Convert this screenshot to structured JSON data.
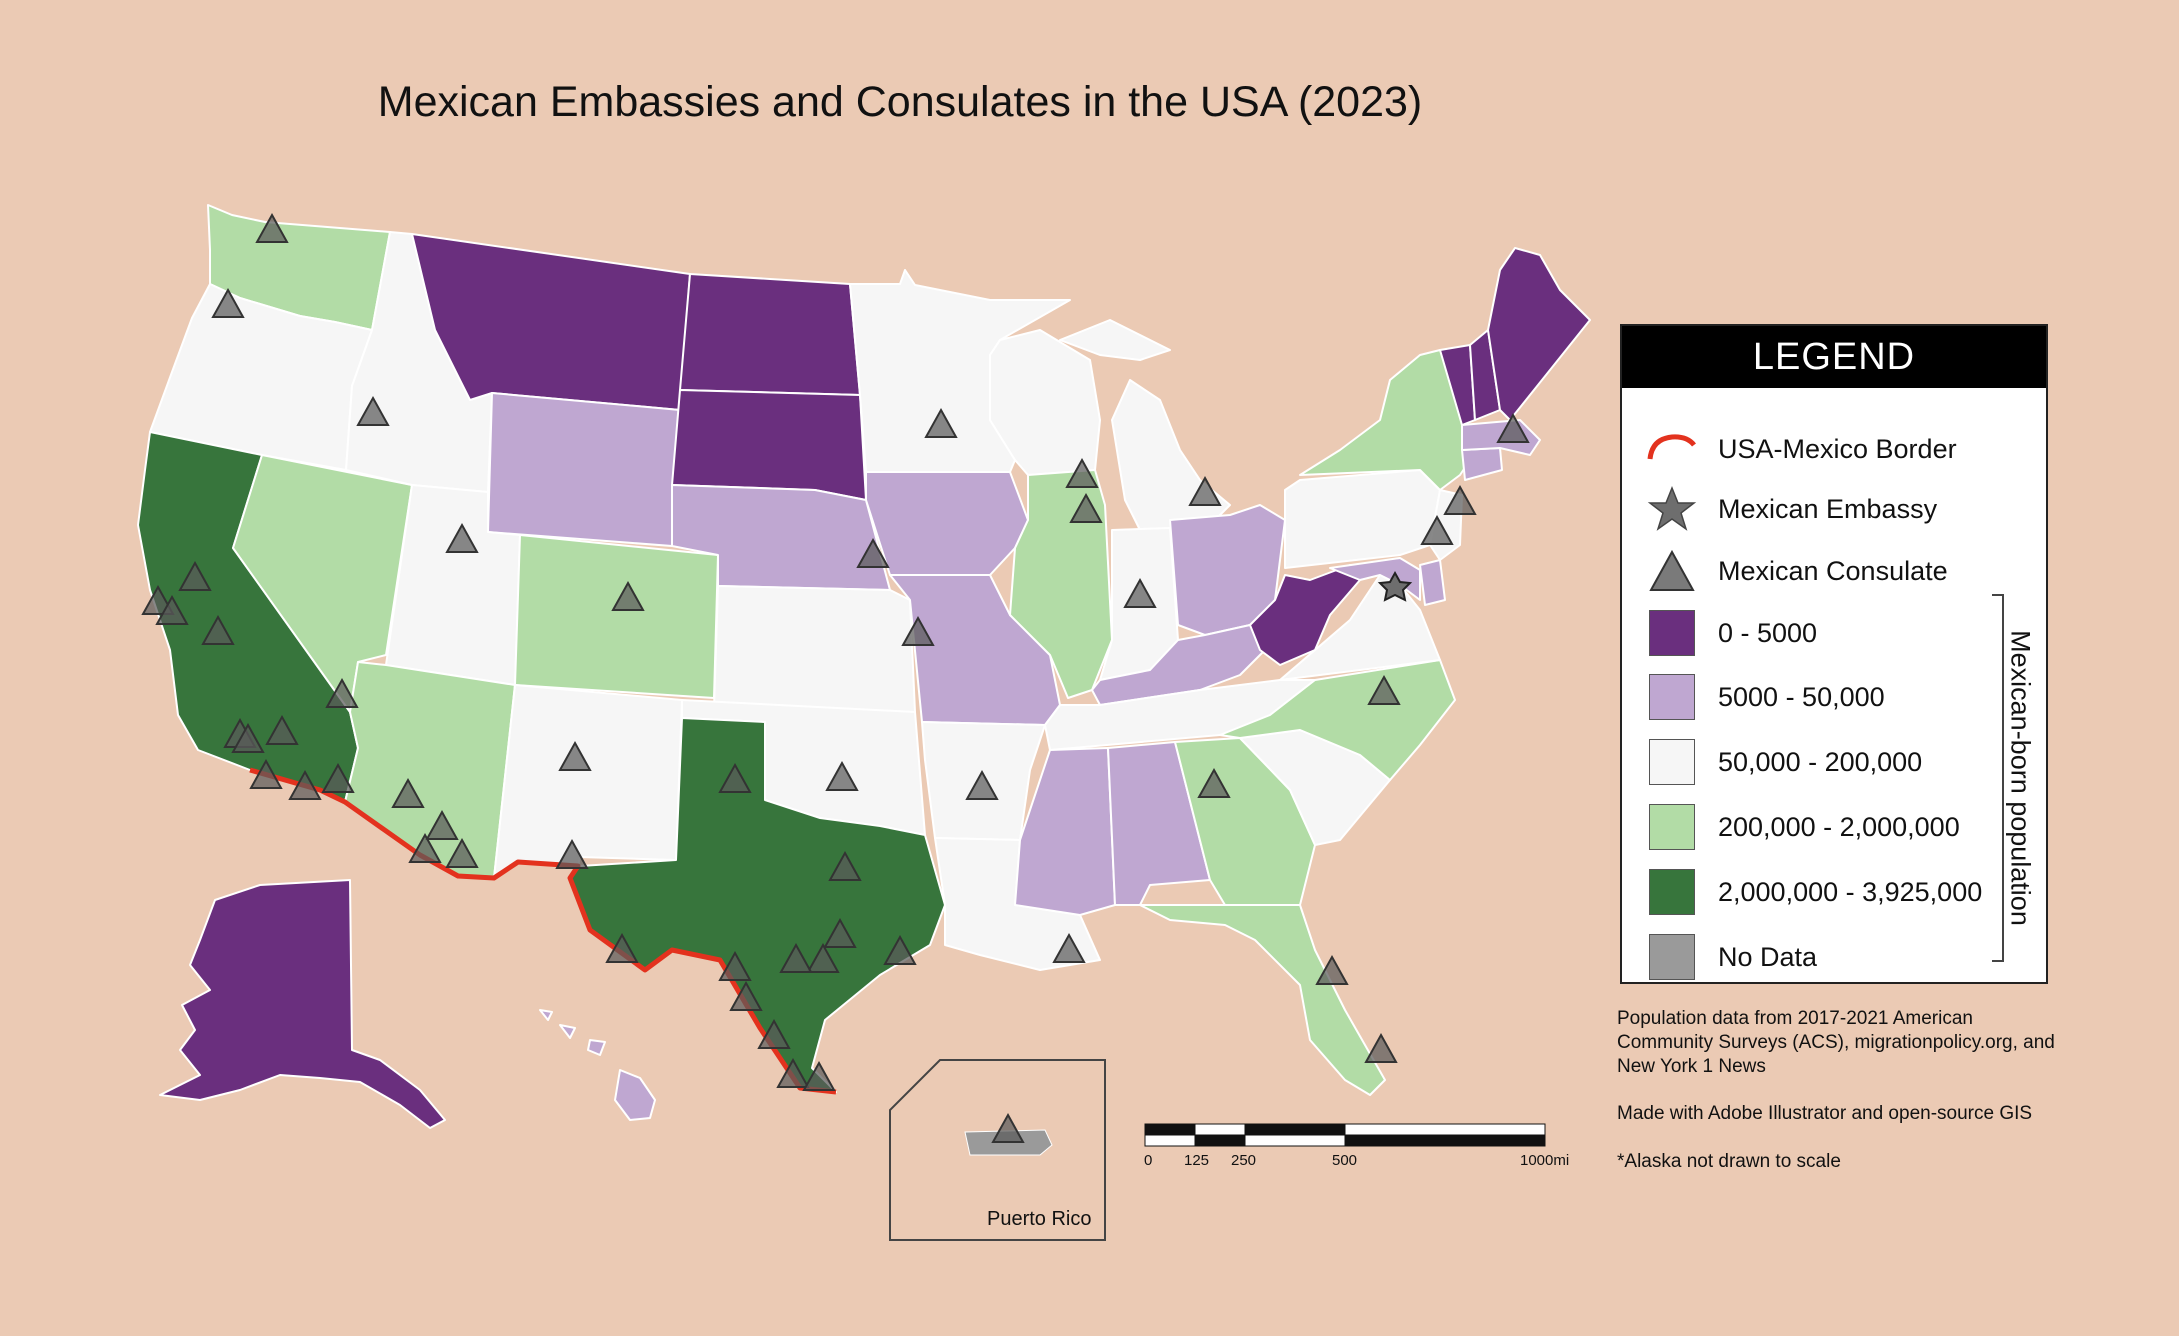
{
  "title": "Mexican Embassies and Consulates in the USA (2023)",
  "legend": {
    "header": "LEGEND",
    "items": [
      {
        "label": "USA-Mexico Border",
        "type": "border",
        "color": "#e3321e"
      },
      {
        "label": "Mexican Embassy",
        "type": "embassy",
        "color": "#6e6e6e"
      },
      {
        "label": "Mexican Consulate",
        "type": "consulate",
        "color": "#7a7a7a"
      },
      {
        "label": "0 - 5000",
        "type": "swatch",
        "color": "#6a2f7e"
      },
      {
        "label": "5000 - 50,000",
        "type": "swatch",
        "color": "#bfa7d1"
      },
      {
        "label": "50,000 - 200,000",
        "type": "swatch",
        "color": "#f6f6f6"
      },
      {
        "label": "200,000 - 2,000,000",
        "type": "swatch",
        "color": "#b2dca6"
      },
      {
        "label": "2,000,000 - 3,925,000",
        "type": "swatch",
        "color": "#37753c"
      },
      {
        "label": "No Data",
        "type": "swatch",
        "color": "#9a9a9a"
      }
    ],
    "bracket_label": "Mexican-born population"
  },
  "notes": {
    "sources": "Population data from 2017-2021 American Community Surveys (ACS), migrationpolicy.org, and New York 1 News",
    "tools": "Made with Adobe Illustrator and open-source GIS",
    "alaska": "*Alaska not drawn to scale"
  },
  "scale_bar": {
    "ticks": [
      "0",
      "125",
      "250",
      "500",
      "1000mi"
    ]
  },
  "inset": {
    "label": "Puerto Rico"
  },
  "colors": {
    "background": "#ebcab4",
    "bin_0_5000": "#6a2f7e",
    "bin_5000_50000": "#bfa7d1",
    "bin_50000_200000": "#f6f6f6",
    "bin_200000_2000000": "#b2dca6",
    "bin_2000000_3925000": "#37753c",
    "no_data": "#9a9a9a",
    "border": "#e3321e"
  },
  "state_bins": {
    "WA": "200,000 - 2,000,000",
    "OR": "50,000 - 200,000",
    "CA": "2,000,000 - 3,925,000",
    "NV": "200,000 - 2,000,000",
    "ID": "50,000 - 200,000",
    "MT": "0 - 5000",
    "WY": "5000 - 50,000",
    "UT": "50,000 - 200,000",
    "AZ": "200,000 - 2,000,000",
    "CO": "200,000 - 2,000,000",
    "NM": "50,000 - 200,000",
    "ND": "0 - 5000",
    "SD": "0 - 5000",
    "NE": "5000 - 50,000",
    "KS": "50,000 - 200,000",
    "OK": "50,000 - 200,000",
    "TX": "2,000,000 - 3,925,000",
    "MN": "50,000 - 200,000",
    "IA": "5000 - 50,000",
    "MO": "5000 - 50,000",
    "AR": "50,000 - 200,000",
    "LA": "50,000 - 200,000",
    "WI": "50,000 - 200,000",
    "IL": "200,000 - 2,000,000",
    "MI": "50,000 - 200,000",
    "IN": "50,000 - 200,000",
    "OH": "5000 - 50,000",
    "KY": "5000 - 50,000",
    "TN": "50,000 - 200,000",
    "MS": "5000 - 50,000",
    "AL": "5000 - 50,000",
    "GA": "200,000 - 2,000,000",
    "FL": "200,000 - 2,000,000",
    "SC": "50,000 - 200,000",
    "NC": "200,000 - 2,000,000",
    "VA": "50,000 - 200,000",
    "WV": "0 - 5000",
    "PA": "50,000 - 200,000",
    "NY": "200,000 - 2,000,000",
    "ME": "0 - 5000",
    "VT": "0 - 5000",
    "NH": "0 - 5000",
    "MA": "5000 - 50,000",
    "CT": "5000 - 50,000",
    "NJ": "50,000 - 200,000",
    "MD": "5000 - 50,000",
    "DE": "5000 - 50,000",
    "AK": "0 - 5000",
    "HI": "5000 - 50,000",
    "PR": "No Data"
  }
}
